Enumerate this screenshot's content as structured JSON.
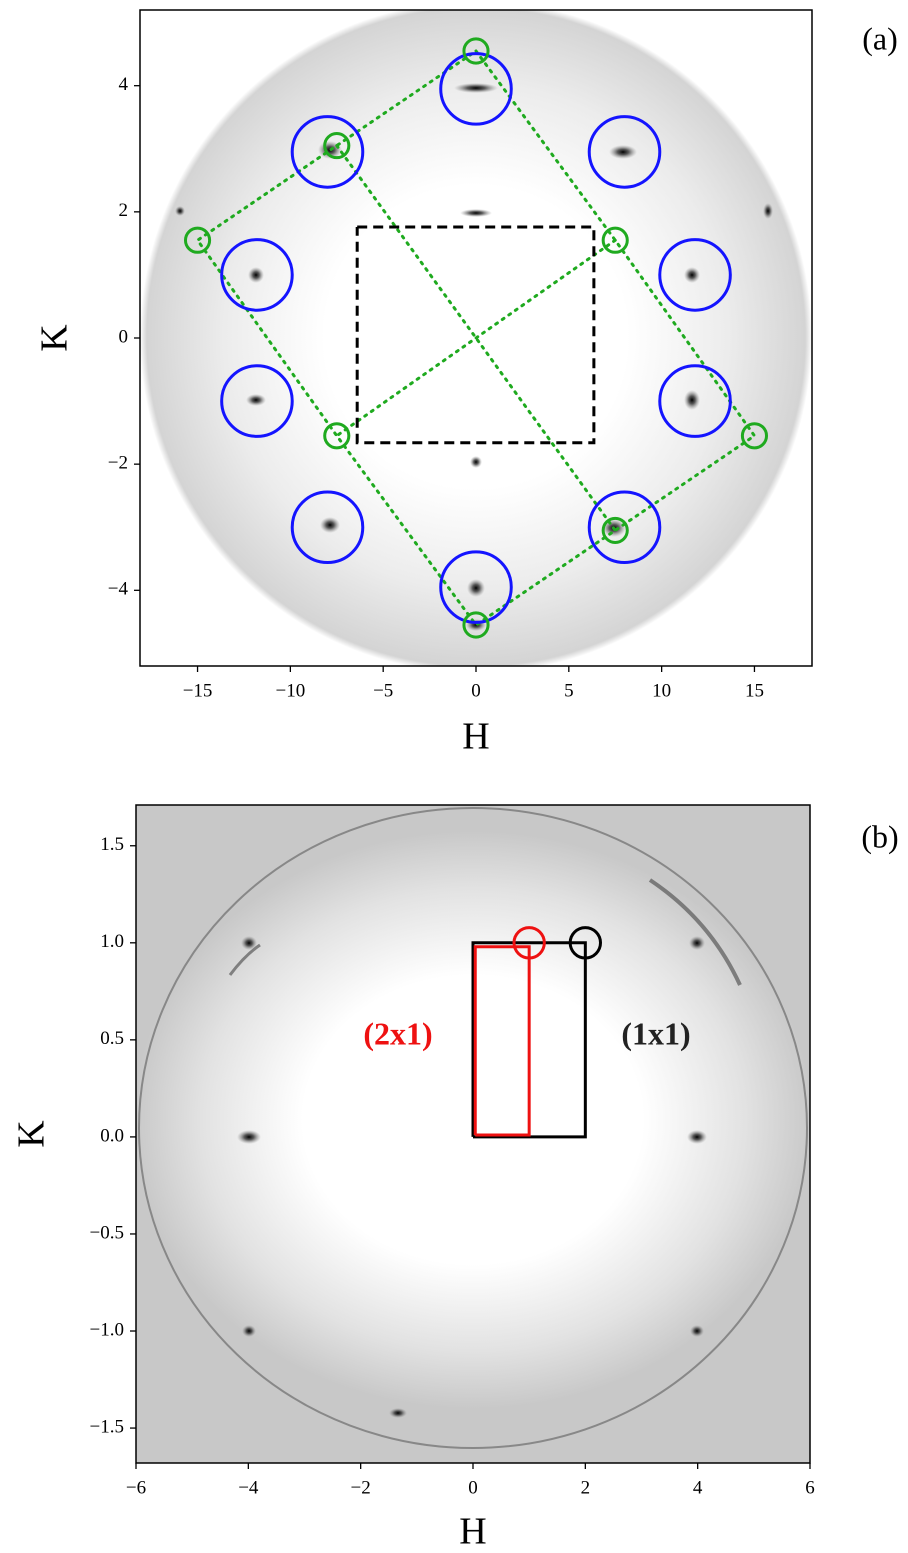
{
  "chart_data": [
    {
      "type": "image",
      "panel_label": "(a)",
      "x_label": "H",
      "y_label": "K",
      "xlim": [
        -18.1,
        18.1
      ],
      "ylim": [
        -5.2,
        5.2
      ],
      "xticks": [
        {
          "value": -15,
          "label": "−15"
        },
        {
          "value": -10,
          "label": "−10"
        },
        {
          "value": -5,
          "label": "−5"
        },
        0,
        5,
        10,
        15
      ],
      "yticks": [
        {
          "value": -4,
          "label": "−4"
        },
        {
          "value": -2,
          "label": "−2"
        },
        0,
        2,
        4
      ],
      "circles": [
        {
          "h": 0,
          "k": 3.95,
          "r": 1.9,
          "color": "#1414ff"
        },
        {
          "h": 8,
          "k": 2.95,
          "r": 1.9,
          "color": "#1414ff"
        },
        {
          "h": 11.8,
          "k": 1,
          "r": 1.9,
          "color": "#1414ff"
        },
        {
          "h": 11.8,
          "k": -1,
          "r": 1.9,
          "color": "#1414ff"
        },
        {
          "h": 8,
          "k": -3,
          "r": 1.9,
          "color": "#1414ff"
        },
        {
          "h": 0,
          "k": -3.95,
          "r": 1.9,
          "color": "#1414ff"
        },
        {
          "h": -8,
          "k": -3,
          "r": 1.9,
          "color": "#1414ff"
        },
        {
          "h": -11.8,
          "k": -1,
          "r": 1.9,
          "color": "#1414ff"
        },
        {
          "h": -11.8,
          "k": 1,
          "r": 1.9,
          "color": "#1414ff"
        },
        {
          "h": -8,
          "k": 2.95,
          "r": 1.9,
          "color": "#1414ff"
        },
        {
          "h": 0,
          "k": 4.55,
          "r": 0.65,
          "color": "#1faa1f"
        },
        {
          "h": 7.5,
          "k": 1.55,
          "r": 0.65,
          "color": "#1faa1f"
        },
        {
          "h": 15,
          "k": -1.55,
          "r": 0.65,
          "color": "#1faa1f"
        },
        {
          "h": 7.5,
          "k": -3.05,
          "r": 0.65,
          "color": "#1faa1f"
        },
        {
          "h": 0,
          "k": -4.55,
          "r": 0.65,
          "color": "#1faa1f"
        },
        {
          "h": -7.5,
          "k": -1.55,
          "r": 0.65,
          "color": "#1faa1f"
        },
        {
          "h": -15,
          "k": 1.55,
          "r": 0.65,
          "color": "#1faa1f"
        },
        {
          "h": -7.5,
          "k": 3.05,
          "r": 0.65,
          "color": "#1faa1f"
        }
      ],
      "polylines": [
        {
          "h": [
            0,
            7.5,
            15,
            7.5,
            0,
            -7.5,
            -15,
            -7.5,
            0
          ],
          "k": [
            4.55,
            1.55,
            -1.55,
            -3.05,
            -4.55,
            -1.55,
            1.55,
            3.05,
            4.55
          ],
          "color": "#1faa1f",
          "style": "dotted"
        },
        {
          "h": [
            7.5,
            -7.5
          ],
          "k": [
            1.55,
            -1.55
          ],
          "color": "#1faa1f",
          "style": "dotted"
        },
        {
          "h": [
            -7.5,
            7.5
          ],
          "k": [
            3.05,
            -3.05
          ],
          "color": "#1faa1f",
          "style": "dotted"
        },
        {
          "h": [
            -6.4,
            6.35,
            6.35,
            -6.4,
            -6.4
          ],
          "k": [
            1.76,
            1.76,
            -1.66,
            -1.66,
            1.76
          ],
          "color": "#000000",
          "style": "dashed"
        }
      ],
      "annotations": []
    },
    {
      "type": "image",
      "panel_label": "(b)",
      "x_label": "H",
      "y_label": "K",
      "xlim": [
        -6,
        6
      ],
      "ylim": [
        -1.68,
        1.71
      ],
      "xticks": [
        {
          "value": -6,
          "label": "−6"
        },
        {
          "value": -4,
          "label": "−4"
        },
        {
          "value": -2,
          "label": "−2"
        },
        0,
        2,
        4,
        6
      ],
      "yticks": [
        {
          "value": -1.5,
          "label": "−1.5"
        },
        {
          "value": -1,
          "label": "−1.0"
        },
        {
          "value": -0.5,
          "label": "−0.5"
        },
        {
          "value": 0,
          "label": "0.0"
        },
        0.5,
        {
          "value": 1,
          "label": "1.0"
        },
        1.5
      ],
      "circles": [
        {
          "h": 1,
          "k": 1,
          "r": 0.27,
          "color": "#ee1111"
        },
        {
          "h": 2,
          "k": 1,
          "r": 0.27,
          "color": "#000000"
        }
      ],
      "polylines": [
        {
          "h": [
            0,
            2,
            2,
            0,
            0
          ],
          "k": [
            0,
            0,
            1,
            1,
            0
          ],
          "color": "#000000",
          "style": "solid"
        },
        {
          "h": [
            0.04,
            1,
            1,
            0.04,
            0.04
          ],
          "k": [
            0.01,
            0.01,
            0.98,
            0.98,
            0.01
          ],
          "color": "#ee1111",
          "style": "solid"
        }
      ],
      "annotations": [
        {
          "text": "(2x1)",
          "color": "#ee1111"
        },
        {
          "text": "(1x1)",
          "color": "#222222"
        }
      ]
    }
  ]
}
